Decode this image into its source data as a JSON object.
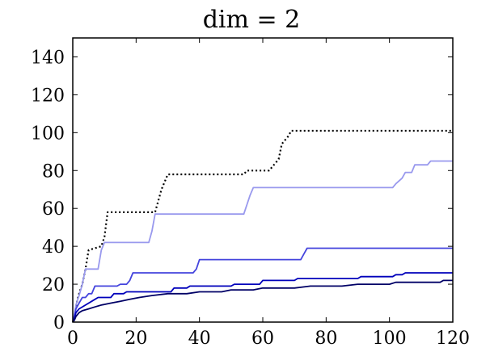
{
  "chart_data": {
    "type": "line",
    "title": "dim = 2",
    "xlabel": "",
    "ylabel": "",
    "xlim": [
      0,
      120
    ],
    "ylim": [
      0,
      150
    ],
    "xticks": [
      0,
      20,
      40,
      60,
      80,
      100,
      120
    ],
    "yticks": [
      0,
      20,
      40,
      60,
      80,
      100,
      120,
      140
    ],
    "xtick_labels": [
      "0",
      "20",
      "40",
      "60",
      "80",
      "100",
      "120"
    ],
    "ytick_labels": [
      "0",
      "20",
      "40",
      "60",
      "80",
      "100",
      "120",
      "140"
    ],
    "grid": false,
    "legend": "none",
    "series": [
      {
        "color": "#000000",
        "style": "dotted",
        "points": [
          [
            0,
            0
          ],
          [
            0.5,
            3
          ],
          [
            1,
            8
          ],
          [
            1.5,
            12
          ],
          [
            2,
            15
          ],
          [
            3,
            20
          ],
          [
            4,
            28
          ],
          [
            5,
            38
          ],
          [
            9,
            40
          ],
          [
            10,
            45
          ],
          [
            11,
            58
          ],
          [
            26,
            58
          ],
          [
            28,
            70
          ],
          [
            30,
            78
          ],
          [
            54,
            78
          ],
          [
            55,
            80
          ],
          [
            62,
            80
          ],
          [
            63,
            82
          ],
          [
            65,
            86
          ],
          [
            66,
            94
          ],
          [
            68,
            98
          ],
          [
            69,
            101
          ],
          [
            120,
            101
          ]
        ]
      },
      {
        "color": "#9999ee",
        "style": "solid",
        "points": [
          [
            0,
            0
          ],
          [
            0.5,
            4
          ],
          [
            1,
            9
          ],
          [
            2,
            14
          ],
          [
            3,
            20
          ],
          [
            4,
            28
          ],
          [
            8,
            28
          ],
          [
            9,
            38
          ],
          [
            10,
            42
          ],
          [
            24,
            42
          ],
          [
            25,
            48
          ],
          [
            26,
            57
          ],
          [
            54,
            57
          ],
          [
            55,
            62
          ],
          [
            56,
            67
          ],
          [
            57,
            71
          ],
          [
            101,
            71
          ],
          [
            102,
            73
          ],
          [
            104,
            76
          ],
          [
            105,
            79
          ],
          [
            107,
            79
          ],
          [
            108,
            83
          ],
          [
            112,
            83
          ],
          [
            113,
            85
          ],
          [
            120,
            85
          ]
        ]
      },
      {
        "color": "#4444dd",
        "style": "solid",
        "points": [
          [
            0,
            0
          ],
          [
            0.5,
            3
          ],
          [
            1,
            7
          ],
          [
            2,
            10
          ],
          [
            3,
            13
          ],
          [
            4,
            13
          ],
          [
            5,
            15
          ],
          [
            6,
            15
          ],
          [
            7,
            19
          ],
          [
            14,
            19
          ],
          [
            15,
            20
          ],
          [
            17,
            20
          ],
          [
            18,
            22
          ],
          [
            19,
            26
          ],
          [
            38,
            26
          ],
          [
            39,
            28
          ],
          [
            40,
            33
          ],
          [
            72,
            33
          ],
          [
            73,
            36
          ],
          [
            74,
            39
          ],
          [
            120,
            39
          ]
        ]
      },
      {
        "color": "#0000bb",
        "style": "solid",
        "points": [
          [
            0,
            0
          ],
          [
            0.5,
            2
          ],
          [
            1,
            5
          ],
          [
            2,
            7
          ],
          [
            4,
            9
          ],
          [
            6,
            11
          ],
          [
            8,
            13
          ],
          [
            12,
            13
          ],
          [
            13,
            15
          ],
          [
            16,
            15
          ],
          [
            17,
            16
          ],
          [
            31,
            16
          ],
          [
            32,
            18
          ],
          [
            36,
            18
          ],
          [
            37,
            19
          ],
          [
            50,
            19
          ],
          [
            51,
            20
          ],
          [
            59,
            20
          ],
          [
            60,
            22
          ],
          [
            70,
            22
          ],
          [
            71,
            23
          ],
          [
            90,
            23
          ],
          [
            91,
            24
          ],
          [
            101,
            24
          ],
          [
            102,
            25
          ],
          [
            104,
            25
          ],
          [
            105,
            26
          ],
          [
            120,
            26
          ]
        ]
      },
      {
        "color": "#000066",
        "style": "solid",
        "points": [
          [
            0,
            0
          ],
          [
            0.5,
            1
          ],
          [
            1,
            3
          ],
          [
            2,
            5
          ],
          [
            3,
            6
          ],
          [
            5,
            7
          ],
          [
            7,
            8
          ],
          [
            9,
            9
          ],
          [
            12,
            10
          ],
          [
            15,
            11
          ],
          [
            18,
            12
          ],
          [
            21,
            13
          ],
          [
            25,
            14
          ],
          [
            30,
            15
          ],
          [
            36,
            15
          ],
          [
            40,
            16
          ],
          [
            47,
            16
          ],
          [
            50,
            17
          ],
          [
            57,
            17
          ],
          [
            60,
            18
          ],
          [
            70,
            18
          ],
          [
            75,
            19
          ],
          [
            85,
            19
          ],
          [
            90,
            20
          ],
          [
            100,
            20
          ],
          [
            102,
            21
          ],
          [
            116,
            21
          ],
          [
            117,
            22
          ],
          [
            120,
            22
          ]
        ]
      }
    ]
  }
}
